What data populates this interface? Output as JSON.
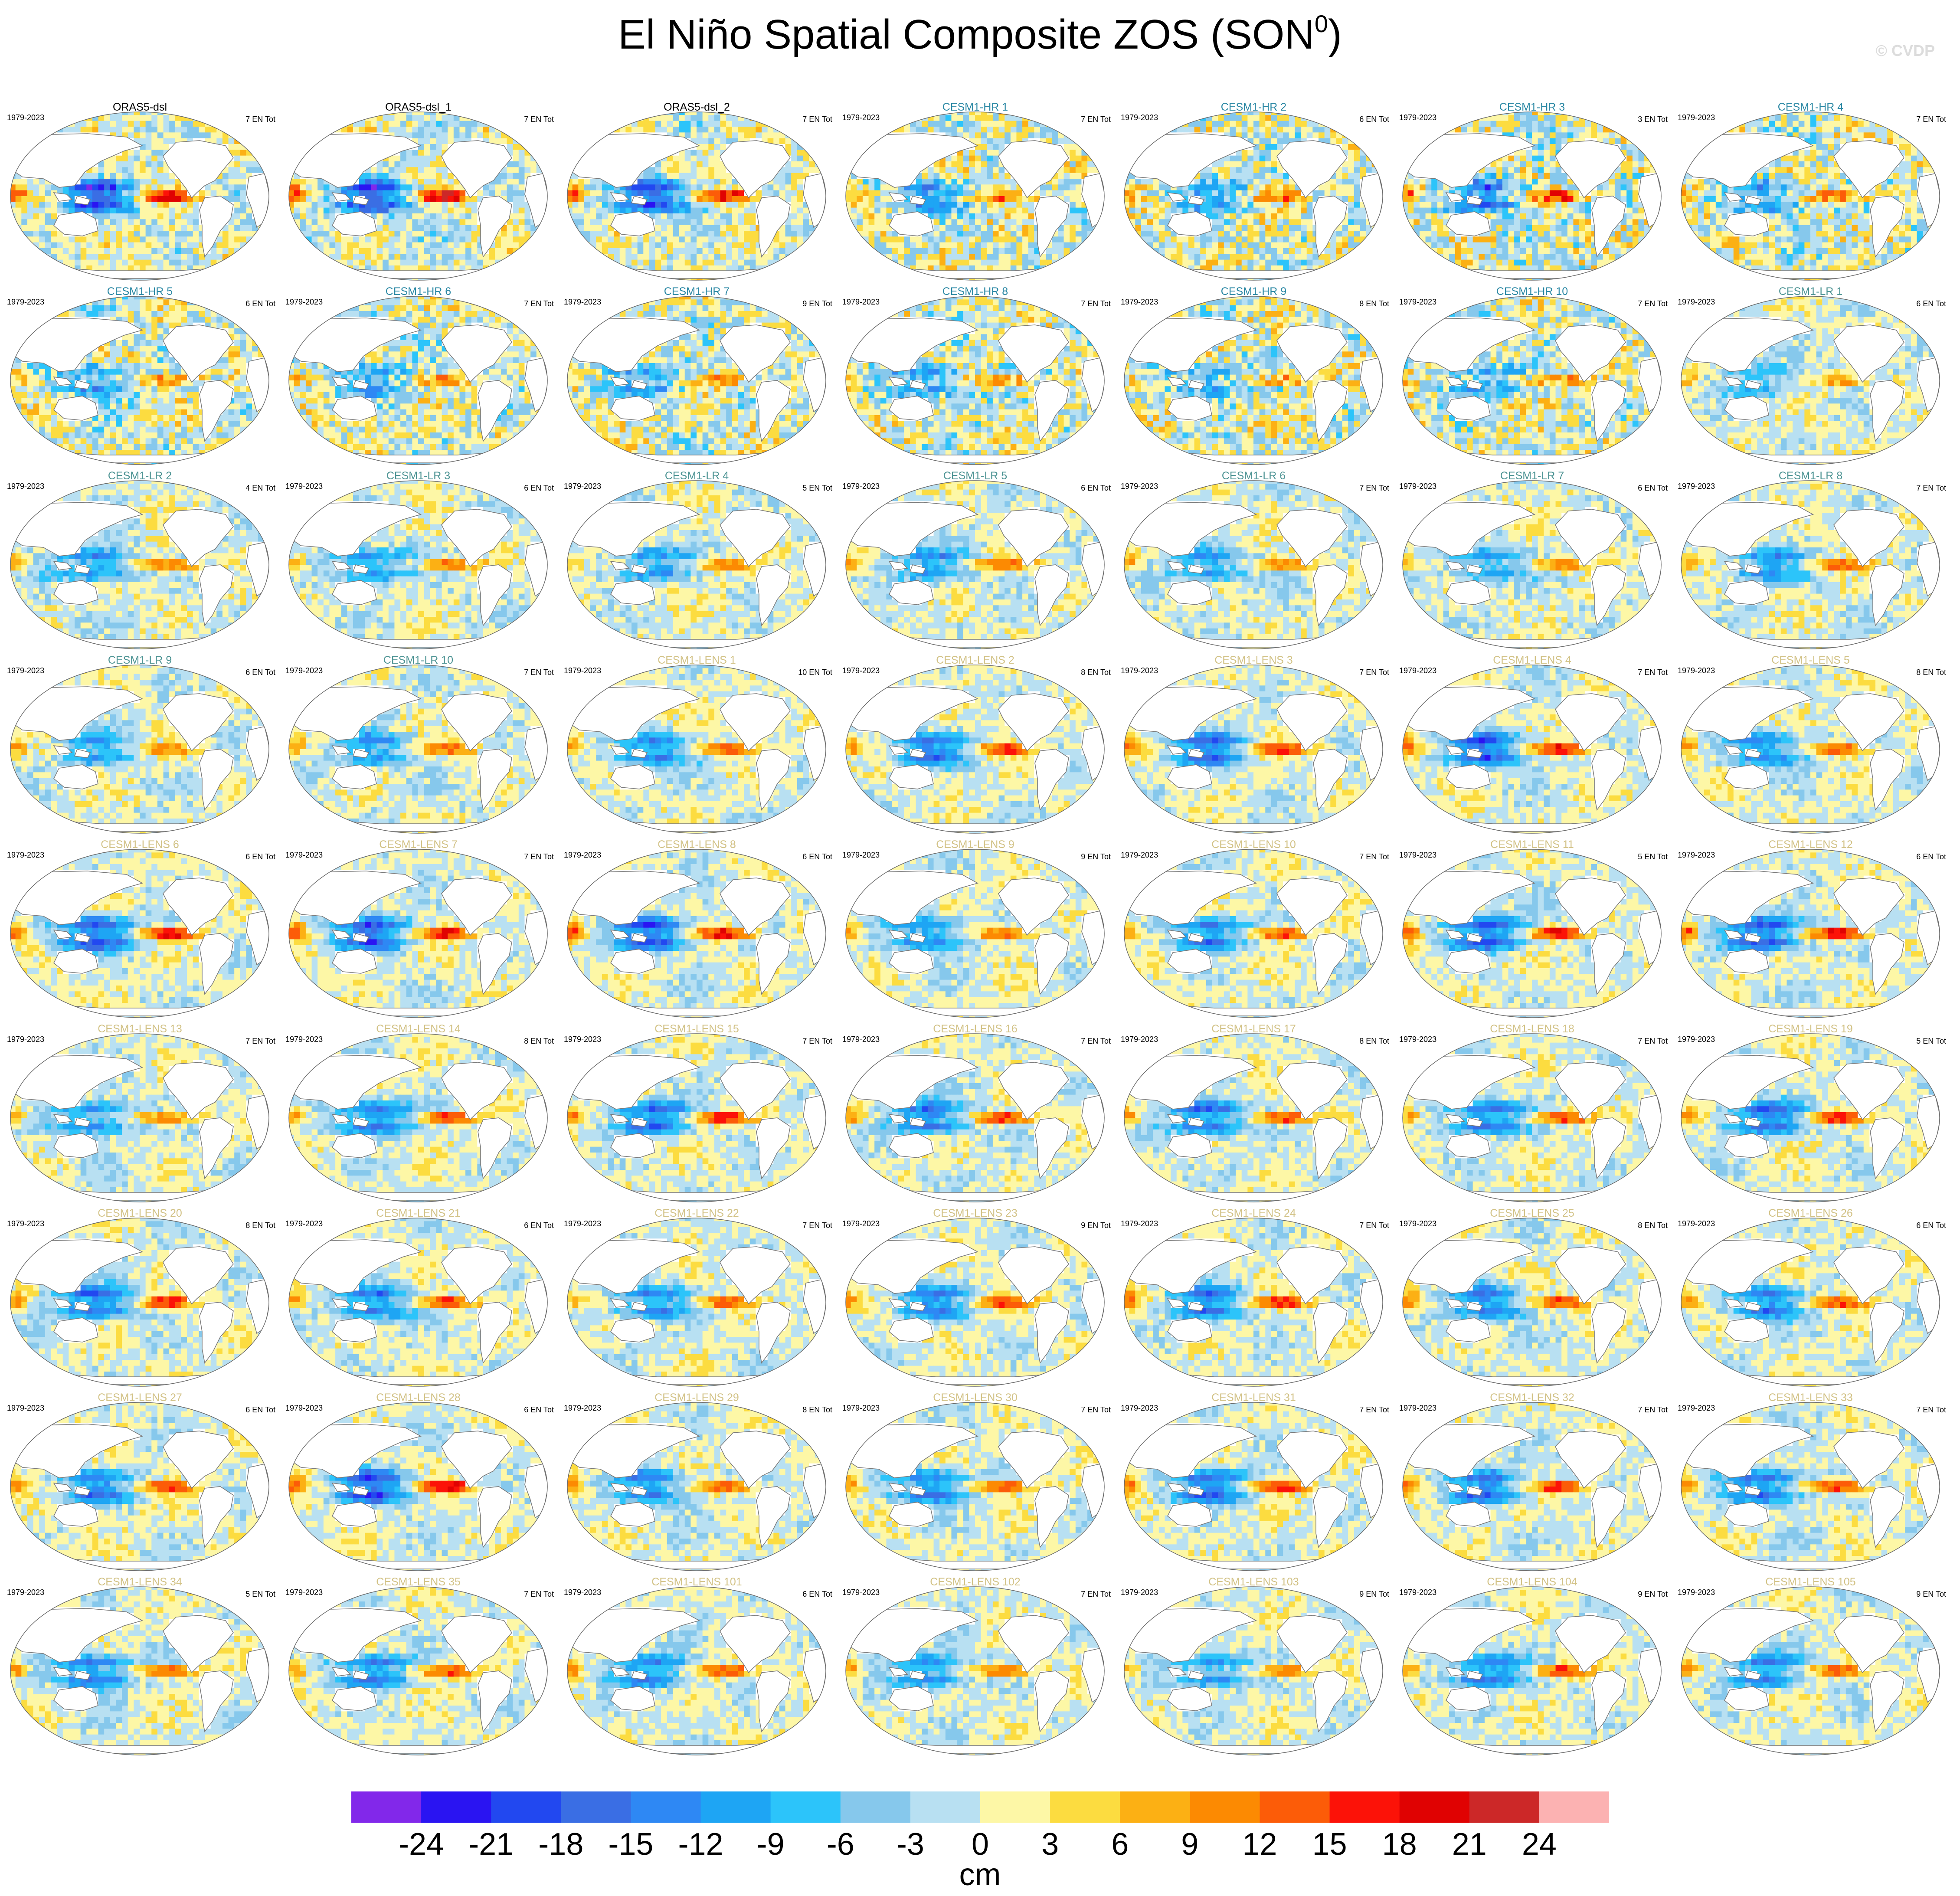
{
  "title": {
    "main": "El Niño Spatial Composite ZOS (SON",
    "sup": "0",
    "close": ")"
  },
  "credit": "© CVDP",
  "chart_data": {
    "type": "heatmap",
    "variable": "ZOS",
    "season": "SON",
    "units": "cm",
    "colorbar": {
      "ticks": [
        "-24",
        "-21",
        "-18",
        "-15",
        "-12",
        "-9",
        "-6",
        "-3",
        "0",
        "3",
        "6",
        "9",
        "12",
        "15",
        "18",
        "21",
        "24"
      ],
      "colors": [
        "#8228ea",
        "#2a14f2",
        "#2248f0",
        "#3a6ee4",
        "#2e88f4",
        "#1ea5f4",
        "#2cc4fa",
        "#86c8ec",
        "#b8e0f2",
        "#fdf7a6",
        "#fcdc40",
        "#fcb014",
        "#fc8a02",
        "#fc5c08",
        "#fc1208",
        "#e00202",
        "#cc2828",
        "#fcb2b2"
      ]
    },
    "panels": [
      {
        "title": "ORAS5-dsl",
        "years": "1979-2023",
        "count": "7 EN Tot",
        "title_color": "#000000",
        "pattern": {
          "amp": 1.0,
          "noise": 0.55
        }
      },
      {
        "title": "ORAS5-dsl_1",
        "years": "",
        "count": "7 EN Tot",
        "title_color": "#000000",
        "pattern": {
          "amp": 1.0,
          "noise": 0.55
        }
      },
      {
        "title": "ORAS5-dsl_2",
        "years": "",
        "count": "7 EN Tot",
        "title_color": "#000000",
        "pattern": {
          "amp": 1.0,
          "noise": 0.55
        }
      },
      {
        "title": "CESM1-HR 1",
        "years": "1979-2023",
        "count": "7 EN Tot",
        "title_color": "#2b88a4",
        "pattern": {
          "amp": 0.6,
          "noise": 0.7
        }
      },
      {
        "title": "CESM1-HR 2",
        "years": "1979-2023",
        "count": "6 EN Tot",
        "title_color": "#2b88a4",
        "pattern": {
          "amp": 0.5,
          "noise": 0.75
        }
      },
      {
        "title": "CESM1-HR 3",
        "years": "1979-2023",
        "count": "3 EN Tot",
        "title_color": "#2b88a4",
        "pattern": {
          "amp": 0.75,
          "noise": 0.85
        }
      },
      {
        "title": "CESM1-HR 4",
        "years": "1979-2023",
        "count": "7 EN Tot",
        "title_color": "#2b88a4",
        "pattern": {
          "amp": 0.6,
          "noise": 0.75
        }
      },
      {
        "title": "CESM1-HR 5",
        "years": "1979-2023",
        "count": "6 EN Tot",
        "title_color": "#2b88a4",
        "pattern": {
          "amp": 0.55,
          "noise": 0.7
        }
      },
      {
        "title": "CESM1-HR 6",
        "years": "1979-2023",
        "count": "7 EN Tot",
        "title_color": "#2b88a4",
        "pattern": {
          "amp": 0.5,
          "noise": 0.7
        }
      },
      {
        "title": "CESM1-HR 7",
        "years": "1979-2023",
        "count": "9 EN Tot",
        "title_color": "#2b88a4",
        "pattern": {
          "amp": 0.5,
          "noise": 0.7
        }
      },
      {
        "title": "CESM1-HR 8",
        "years": "1979-2023",
        "count": "7 EN Tot",
        "title_color": "#2b88a4",
        "pattern": {
          "amp": 0.55,
          "noise": 0.75
        }
      },
      {
        "title": "CESM1-HR 9",
        "years": "1979-2023",
        "count": "8 EN Tot",
        "title_color": "#2b88a4",
        "pattern": {
          "amp": 0.5,
          "noise": 0.75
        }
      },
      {
        "title": "CESM1-HR 10",
        "years": "1979-2023",
        "count": "7 EN Tot",
        "title_color": "#2b88a4",
        "pattern": {
          "amp": 0.5,
          "noise": 0.75
        }
      },
      {
        "title": "CESM1-LR 1",
        "years": "1979-2023",
        "count": "6 EN Tot",
        "title_color": "#4e9494",
        "pattern": {
          "amp": 0.45,
          "noise": 0.4
        }
      },
      {
        "title": "CESM1-LR 2",
        "years": "1979-2023",
        "count": "4 EN Tot",
        "title_color": "#4e9494",
        "pattern": {
          "amp": 0.7,
          "noise": 0.4
        }
      },
      {
        "title": "CESM1-LR 3",
        "years": "1979-2023",
        "count": "6 EN Tot",
        "title_color": "#4e9494",
        "pattern": {
          "amp": 0.65,
          "noise": 0.4
        }
      },
      {
        "title": "CESM1-LR 4",
        "years": "1979-2023",
        "count": "5 EN Tot",
        "title_color": "#4e9494",
        "pattern": {
          "amp": 0.6,
          "noise": 0.4
        }
      },
      {
        "title": "CESM1-LR 5",
        "years": "1979-2023",
        "count": "6 EN Tot",
        "title_color": "#4e9494",
        "pattern": {
          "amp": 0.6,
          "noise": 0.4
        }
      },
      {
        "title": "CESM1-LR 6",
        "years": "1979-2023",
        "count": "7 EN Tot",
        "title_color": "#4e9494",
        "pattern": {
          "amp": 0.6,
          "noise": 0.4
        }
      },
      {
        "title": "CESM1-LR 7",
        "years": "1979-2023",
        "count": "6 EN Tot",
        "title_color": "#4e9494",
        "pattern": {
          "amp": 0.6,
          "noise": 0.4
        }
      },
      {
        "title": "CESM1-LR 8",
        "years": "1979-2023",
        "count": "7 EN Tot",
        "title_color": "#4e9494",
        "pattern": {
          "amp": 0.6,
          "noise": 0.4
        }
      },
      {
        "title": "CESM1-LR 9",
        "years": "1979-2023",
        "count": "6 EN Tot",
        "title_color": "#4e9494",
        "pattern": {
          "amp": 0.5,
          "noise": 0.4
        }
      },
      {
        "title": "CESM1-LR 10",
        "years": "1979-2023",
        "count": "7 EN Tot",
        "title_color": "#4e9494",
        "pattern": {
          "amp": 0.6,
          "noise": 0.4
        }
      },
      {
        "title": "CESM1-LENS 1",
        "years": "1979-2023",
        "count": "10 EN Tot",
        "title_color": "#d2c286",
        "pattern": {
          "amp": 0.7,
          "noise": 0.35
        }
      },
      {
        "title": "CESM1-LENS 2",
        "years": "1979-2023",
        "count": "8 EN Tot",
        "title_color": "#d2c286",
        "pattern": {
          "amp": 0.75,
          "noise": 0.35
        }
      },
      {
        "title": "CESM1-LENS 3",
        "years": "1979-2023",
        "count": "7 EN Tot",
        "title_color": "#d2c286",
        "pattern": {
          "amp": 0.8,
          "noise": 0.35
        }
      },
      {
        "title": "CESM1-LENS 4",
        "years": "1979-2023",
        "count": "7 EN Tot",
        "title_color": "#d2c286",
        "pattern": {
          "amp": 0.9,
          "noise": 0.35
        }
      },
      {
        "title": "CESM1-LENS 5",
        "years": "1979-2023",
        "count": "8 EN Tot",
        "title_color": "#d2c286",
        "pattern": {
          "amp": 0.7,
          "noise": 0.35
        }
      },
      {
        "title": "CESM1-LENS 6",
        "years": "1979-2023",
        "count": "6 EN Tot",
        "title_color": "#d2c286",
        "pattern": {
          "amp": 0.95,
          "noise": 0.35
        }
      },
      {
        "title": "CESM1-LENS 7",
        "years": "1979-2023",
        "count": "7 EN Tot",
        "title_color": "#d2c286",
        "pattern": {
          "amp": 0.9,
          "noise": 0.35
        }
      },
      {
        "title": "CESM1-LENS 8",
        "years": "1979-2023",
        "count": "6 EN Tot",
        "title_color": "#d2c286",
        "pattern": {
          "amp": 1.0,
          "noise": 0.35
        }
      },
      {
        "title": "CESM1-LENS 9",
        "years": "1979-2023",
        "count": "9 EN Tot",
        "title_color": "#d2c286",
        "pattern": {
          "amp": 0.7,
          "noise": 0.35
        }
      },
      {
        "title": "CESM1-LENS 10",
        "years": "1979-2023",
        "count": "7 EN Tot",
        "title_color": "#d2c286",
        "pattern": {
          "amp": 0.8,
          "noise": 0.35
        }
      },
      {
        "title": "CESM1-LENS 11",
        "years": "1979-2023",
        "count": "5 EN Tot",
        "title_color": "#d2c286",
        "pattern": {
          "amp": 0.95,
          "noise": 0.35
        }
      },
      {
        "title": "CESM1-LENS 12",
        "years": "1979-2023",
        "count": "6 EN Tot",
        "title_color": "#d2c286",
        "pattern": {
          "amp": 1.0,
          "noise": 0.35
        }
      },
      {
        "title": "CESM1-LENS 13",
        "years": "1979-2023",
        "count": "7 EN Tot",
        "title_color": "#d2c286",
        "pattern": {
          "amp": 0.7,
          "noise": 0.35
        }
      },
      {
        "title": "CESM1-LENS 14",
        "years": "1979-2023",
        "count": "8 EN Tot",
        "title_color": "#d2c286",
        "pattern": {
          "amp": 0.85,
          "noise": 0.35
        }
      },
      {
        "title": "CESM1-LENS 15",
        "years": "1979-2023",
        "count": "7 EN Tot",
        "title_color": "#d2c286",
        "pattern": {
          "amp": 0.85,
          "noise": 0.35
        }
      },
      {
        "title": "CESM1-LENS 16",
        "years": "1979-2023",
        "count": "7 EN Tot",
        "title_color": "#d2c286",
        "pattern": {
          "amp": 0.8,
          "noise": 0.35
        }
      },
      {
        "title": "CESM1-LENS 17",
        "years": "1979-2023",
        "count": "8 EN Tot",
        "title_color": "#d2c286",
        "pattern": {
          "amp": 0.9,
          "noise": 0.35
        }
      },
      {
        "title": "CESM1-LENS 18",
        "years": "1979-2023",
        "count": "7 EN Tot",
        "title_color": "#d2c286",
        "pattern": {
          "amp": 0.8,
          "noise": 0.35
        }
      },
      {
        "title": "CESM1-LENS 19",
        "years": "1979-2023",
        "count": "5 EN Tot",
        "title_color": "#d2c286",
        "pattern": {
          "amp": 0.85,
          "noise": 0.35
        }
      },
      {
        "title": "CESM1-LENS 20",
        "years": "1979-2023",
        "count": "8 EN Tot",
        "title_color": "#d2c286",
        "pattern": {
          "amp": 0.85,
          "noise": 0.35
        }
      },
      {
        "title": "CESM1-LENS 21",
        "years": "1979-2023",
        "count": "6 EN Tot",
        "title_color": "#d2c286",
        "pattern": {
          "amp": 0.8,
          "noise": 0.35
        }
      },
      {
        "title": "CESM1-LENS 22",
        "years": "1979-2023",
        "count": "7 EN Tot",
        "title_color": "#d2c286",
        "pattern": {
          "amp": 0.7,
          "noise": 0.35
        }
      },
      {
        "title": "CESM1-LENS 23",
        "years": "1979-2023",
        "count": "9 EN Tot",
        "title_color": "#d2c286",
        "pattern": {
          "amp": 0.7,
          "noise": 0.35
        }
      },
      {
        "title": "CESM1-LENS 24",
        "years": "1979-2023",
        "count": "7 EN Tot",
        "title_color": "#d2c286",
        "pattern": {
          "amp": 0.8,
          "noise": 0.35
        }
      },
      {
        "title": "CESM1-LENS 25",
        "years": "1979-2023",
        "count": "8 EN Tot",
        "title_color": "#d2c286",
        "pattern": {
          "amp": 0.75,
          "noise": 0.35
        }
      },
      {
        "title": "CESM1-LENS 26",
        "years": "1979-2023",
        "count": "6 EN Tot",
        "title_color": "#d2c286",
        "pattern": {
          "amp": 0.75,
          "noise": 0.35
        }
      },
      {
        "title": "CESM1-LENS 27",
        "years": "1979-2023",
        "count": "6 EN Tot",
        "title_color": "#d2c286",
        "pattern": {
          "amp": 0.7,
          "noise": 0.35
        }
      },
      {
        "title": "CESM1-LENS 28",
        "years": "1979-2023",
        "count": "6 EN Tot",
        "title_color": "#d2c286",
        "pattern": {
          "amp": 0.95,
          "noise": 0.35
        }
      },
      {
        "title": "CESM1-LENS 29",
        "years": "1979-2023",
        "count": "8 EN Tot",
        "title_color": "#d2c286",
        "pattern": {
          "amp": 0.7,
          "noise": 0.35
        }
      },
      {
        "title": "CESM1-LENS 30",
        "years": "1979-2023",
        "count": "7 EN Tot",
        "title_color": "#d2c286",
        "pattern": {
          "amp": 0.75,
          "noise": 0.35
        }
      },
      {
        "title": "CESM1-LENS 31",
        "years": "1979-2023",
        "count": "7 EN Tot",
        "title_color": "#d2c286",
        "pattern": {
          "amp": 0.85,
          "noise": 0.35
        }
      },
      {
        "title": "CESM1-LENS 32",
        "years": "1979-2023",
        "count": "7 EN Tot",
        "title_color": "#d2c286",
        "pattern": {
          "amp": 0.8,
          "noise": 0.35
        }
      },
      {
        "title": "CESM1-LENS 33",
        "years": "1979-2023",
        "count": "7 EN Tot",
        "title_color": "#d2c286",
        "pattern": {
          "amp": 0.85,
          "noise": 0.35
        }
      },
      {
        "title": "CESM1-LENS 34",
        "years": "1979-2023",
        "count": "5 EN Tot",
        "title_color": "#d2c286",
        "pattern": {
          "amp": 0.85,
          "noise": 0.35
        }
      },
      {
        "title": "CESM1-LENS 35",
        "years": "1979-2023",
        "count": "7 EN Tot",
        "title_color": "#d2c286",
        "pattern": {
          "amp": 0.8,
          "noise": 0.35
        }
      },
      {
        "title": "CESM1-LENS 101",
        "years": "1979-2023",
        "count": "6 EN Tot",
        "title_color": "#d2c286",
        "pattern": {
          "amp": 0.75,
          "noise": 0.35
        }
      },
      {
        "title": "CESM1-LENS 102",
        "years": "1979-2023",
        "count": "7 EN Tot",
        "title_color": "#d2c286",
        "pattern": {
          "amp": 0.7,
          "noise": 0.35
        }
      },
      {
        "title": "CESM1-LENS 103",
        "years": "1979-2023",
        "count": "9 EN Tot",
        "title_color": "#d2c286",
        "pattern": {
          "amp": 0.7,
          "noise": 0.35
        }
      },
      {
        "title": "CESM1-LENS 104",
        "years": "1979-2023",
        "count": "9 EN Tot",
        "title_color": "#d2c286",
        "pattern": {
          "amp": 0.8,
          "noise": 0.35
        }
      },
      {
        "title": "CESM1-LENS 105",
        "years": "1979-2023",
        "count": "9 EN Tot",
        "title_color": "#d2c286",
        "pattern": {
          "amp": 0.7,
          "noise": 0.35
        }
      }
    ]
  }
}
